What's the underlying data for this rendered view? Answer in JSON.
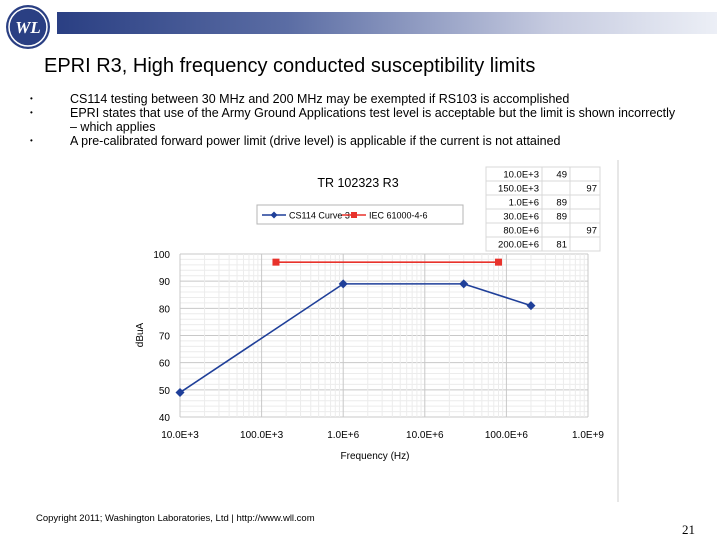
{
  "slide": {
    "title": "EPRI R3, High frequency conducted susceptibility limits",
    "logo_text": "WL",
    "bullets": [
      "CS114 testing between 30 MHz and 200 MHz may be exempted if RS103 is accomplished",
      "EPRI states that use of the Army Ground Applications test level is acceptable but the limit is shown incorrectly – which applies",
      "A pre-calibrated forward power limit (drive level) is applicable if the current is not attained"
    ],
    "footer": "Copyright 2011; Washington Laboratories, Ltd | http://www.wll.com",
    "page_number": "21"
  },
  "colors": {
    "header_dark": "#2a3f83",
    "cs114": "#1f3f99",
    "iec": "#e8322b"
  },
  "chart_data": {
    "type": "line",
    "title": "TR 102323 R3",
    "xlabel": "Frequency (Hz)",
    "ylabel": "dBuA",
    "xscale": "log",
    "xlim": [
      10000,
      1000000000
    ],
    "ylim": [
      40,
      100
    ],
    "xticks": [
      "10.0E+3",
      "100.0E+3",
      "1.0E+6",
      "10.0E+6",
      "100.0E+6",
      "1.0E+9"
    ],
    "yticks": [
      "100",
      "90",
      "80",
      "70",
      "60",
      "50",
      "40"
    ],
    "legend_position": "top",
    "grid": true,
    "series": [
      {
        "name": "CS114 Curve 3",
        "color": "#1f3f99",
        "marker": "diamond",
        "x": [
          10000,
          1000000,
          30000000,
          200000000
        ],
        "y": [
          49,
          89,
          89,
          81
        ]
      },
      {
        "name": "IEC 61000-4-6",
        "color": "#e8322b",
        "marker": "square",
        "x": [
          150000,
          80000000
        ],
        "y": [
          97,
          97
        ]
      }
    ],
    "table": [
      {
        "freq": "10.0E+3",
        "cs114": "49",
        "iec": ""
      },
      {
        "freq": "150.0E+3",
        "cs114": "",
        "iec": "97"
      },
      {
        "freq": "1.0E+6",
        "cs114": "89",
        "iec": ""
      },
      {
        "freq": "30.0E+6",
        "cs114": "89",
        "iec": ""
      },
      {
        "freq": "80.0E+6",
        "cs114": "",
        "iec": "97"
      },
      {
        "freq": "200.0E+6",
        "cs114": "81",
        "iec": ""
      }
    ]
  }
}
